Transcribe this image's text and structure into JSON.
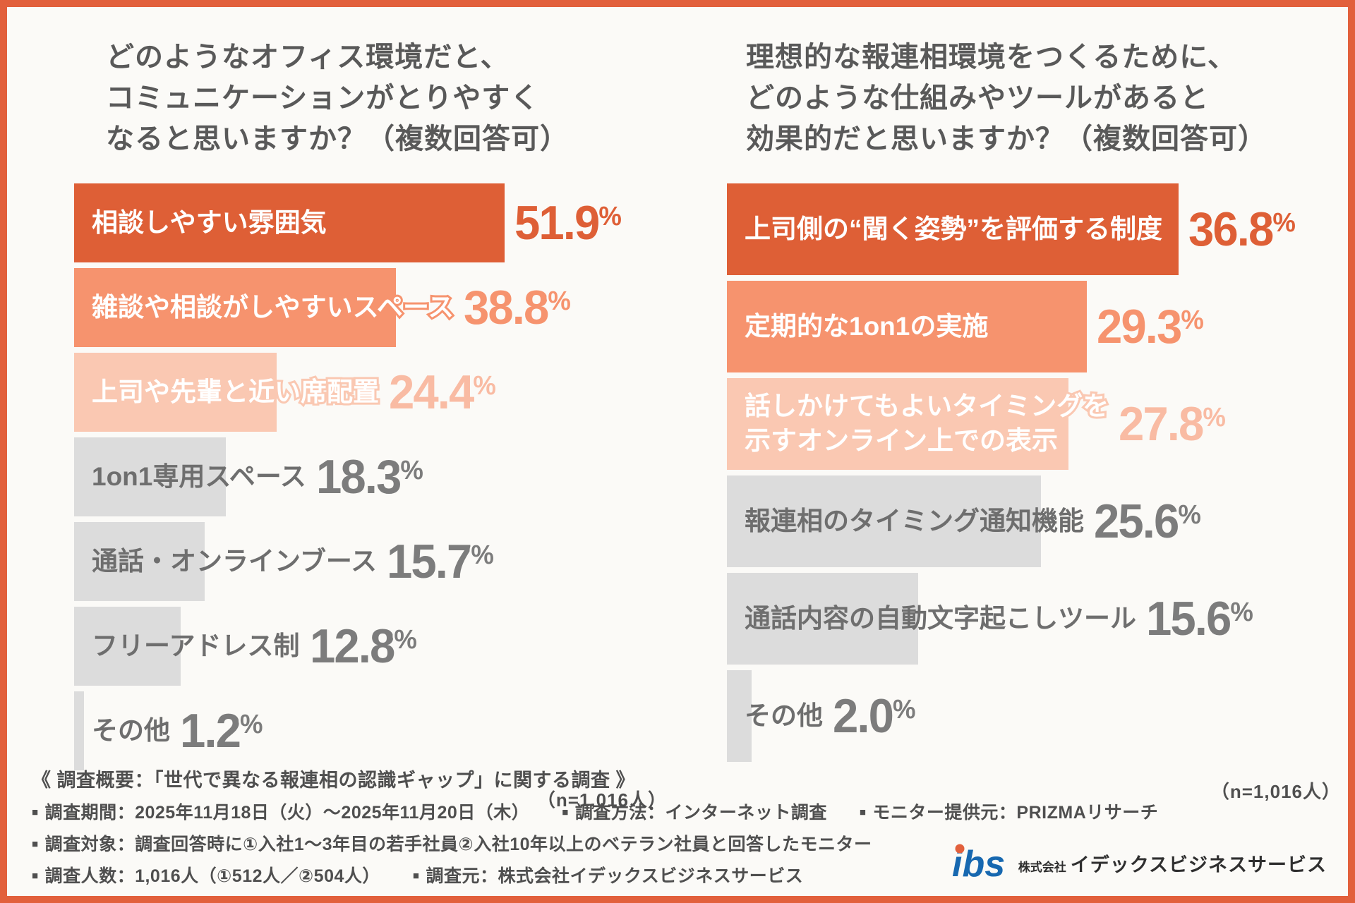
{
  "frame": {
    "border_color": "#E2603C",
    "background": "#FBFAF7"
  },
  "charts": [
    {
      "title_lines": [
        "どのようなオフィス環境だと、",
        "コミュニケーションがとりやすく",
        "なると思いますか？（複数回答可）"
      ],
      "n_label": "（n=1,016人）",
      "chart_data": {
        "type": "bar",
        "orientation": "horizontal",
        "categories": [
          "相談しやすい雰囲気",
          "雑談や相談がしやすいスペース",
          "上司や先輩と近い席配置",
          "1on1専用スペース",
          "通話・オンラインブース",
          "フリーアドレス制",
          "その他"
        ],
        "values": [
          51.9,
          38.8,
          24.4,
          18.3,
          15.7,
          12.8,
          1.2
        ],
        "value_labels": [
          "51.9",
          "38.8",
          "24.4",
          "18.3",
          "15.7",
          "12.8",
          "1.2"
        ],
        "value_suffix": "%",
        "xlim": [
          0,
          71.4
        ],
        "scale_pct_per_point": 1.4,
        "bar_colors": [
          "#DE5F36",
          "#F6936E",
          "#FAC8B2",
          "#DCDCDC",
          "#DCDCDC",
          "#DCDCDC",
          "#DCDCDC"
        ],
        "label_colors": [
          "#FFFFFF",
          "#FFFFFF",
          "#FFFFFF",
          "#6E6E6E",
          "#6E6E6E",
          "#6E6E6E",
          "#6E6E6E"
        ],
        "value_colors": [
          "#DE5F36",
          "#F6936E",
          "#F9BBA3",
          "#7C7C7C",
          "#7C7C7C",
          "#7C7C7C",
          "#7C7C7C"
        ],
        "label_stroked": [
          true,
          true,
          true,
          false,
          false,
          false,
          false
        ],
        "grid": false,
        "legend": false
      }
    },
    {
      "title_lines": [
        "理想的な報連相環境をつくるために、",
        "どのような仕組みやツールがあると",
        "効果的だと思いますか？（複数回答可）"
      ],
      "n_label": "（n=1,016人）",
      "chart_data": {
        "type": "bar",
        "orientation": "horizontal",
        "categories": [
          "上司側の“聞く姿勢”を評価する制度",
          "定期的な1on1の実施",
          [
            "話しかけてもよいタイミングを",
            "示すオンライン上での表示"
          ],
          "報連相のタイミング通知機能",
          "通話内容の自動文字起こしツール",
          "その他"
        ],
        "values": [
          36.8,
          29.3,
          27.8,
          25.6,
          15.6,
          2.0
        ],
        "value_labels": [
          "36.8",
          "29.3",
          "27.8",
          "25.6",
          "15.6",
          "2.0"
        ],
        "value_suffix": "%",
        "xlim": [
          0,
          50
        ],
        "scale_pct_per_point": 2.0,
        "bar_colors": [
          "#DE5F36",
          "#F6936E",
          "#FAC8B2",
          "#DCDCDC",
          "#DCDCDC",
          "#DCDCDC"
        ],
        "label_colors": [
          "#FFFFFF",
          "#FFFFFF",
          "#FFFFFF",
          "#6E6E6E",
          "#6E6E6E",
          "#6E6E6E"
        ],
        "value_colors": [
          "#DE5F36",
          "#F6936E",
          "#F9BBA3",
          "#7C7C7C",
          "#7C7C7C",
          "#7C7C7C"
        ],
        "label_stroked": [
          true,
          true,
          true,
          false,
          false,
          false
        ],
        "grid": false,
        "legend": false
      }
    }
  ],
  "footer": {
    "heading": "《 調査概要：「世代で異なる報連相の認識ギャップ」に関する調査 》",
    "lines": [
      [
        "調査期間：2025年11月18日（火）〜2025年11月20日（木）",
        "調査方法：インターネット調査",
        "モニター提供元：PRIZMAリサーチ"
      ],
      [
        "調査対象：調査回答時に①入社1〜3年目の若手社員②入社10年以上のベテラン社員と回答したモニター"
      ],
      [
        "調査人数：1,016人（①512人／②504人）",
        "調査元：株式会社イデックスビジネスサービス"
      ]
    ]
  },
  "logo": {
    "mark": "ibs",
    "mark_color": "#1768B0",
    "dot_color": "#E2603C",
    "company_prefix": "株式会社",
    "company_name": "イデックスビジネスサービス"
  }
}
